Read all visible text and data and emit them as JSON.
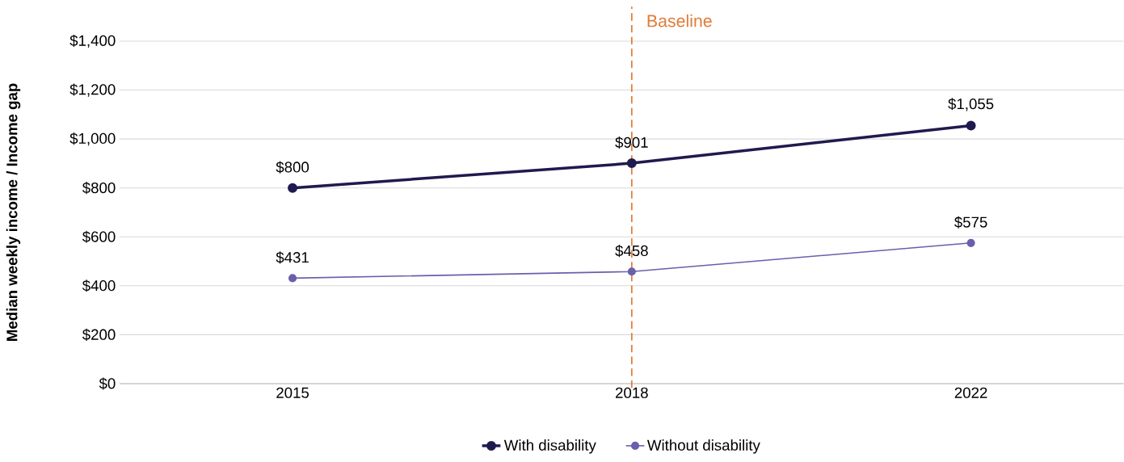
{
  "chart_data": {
    "type": "line",
    "ylabel": "Median weekly income / Income gap",
    "categories": [
      "2015",
      "2018",
      "2022"
    ],
    "series": [
      {
        "name": "With disability",
        "color": "#1f1a4f",
        "values": [
          800,
          901,
          1055
        ],
        "value_labels": [
          "$800",
          "$901",
          "$1,055"
        ]
      },
      {
        "name": "Without disability",
        "color": "#6a5fad",
        "values": [
          431,
          458,
          575
        ],
        "value_labels": [
          "$431",
          "$458",
          "$575"
        ]
      }
    ],
    "ylim": [
      0,
      1400
    ],
    "yticks": [
      {
        "value": 0,
        "label": "$0"
      },
      {
        "value": 200,
        "label": "$200"
      },
      {
        "value": 400,
        "label": "$400"
      },
      {
        "value": 600,
        "label": "$600"
      },
      {
        "value": 800,
        "label": "$800"
      },
      {
        "value": 1000,
        "label": "$1,000"
      },
      {
        "value": 1200,
        "label": "$1,200"
      },
      {
        "value": 1400,
        "label": "$1,400"
      }
    ],
    "ref_lines": [
      {
        "axis": "x",
        "value": "2018",
        "label": "Baseline",
        "color": "#e07b39",
        "line_style": "dashed"
      }
    ],
    "grid": "y",
    "legend": "bottom",
    "marker": "circle",
    "line_style": "solid"
  }
}
